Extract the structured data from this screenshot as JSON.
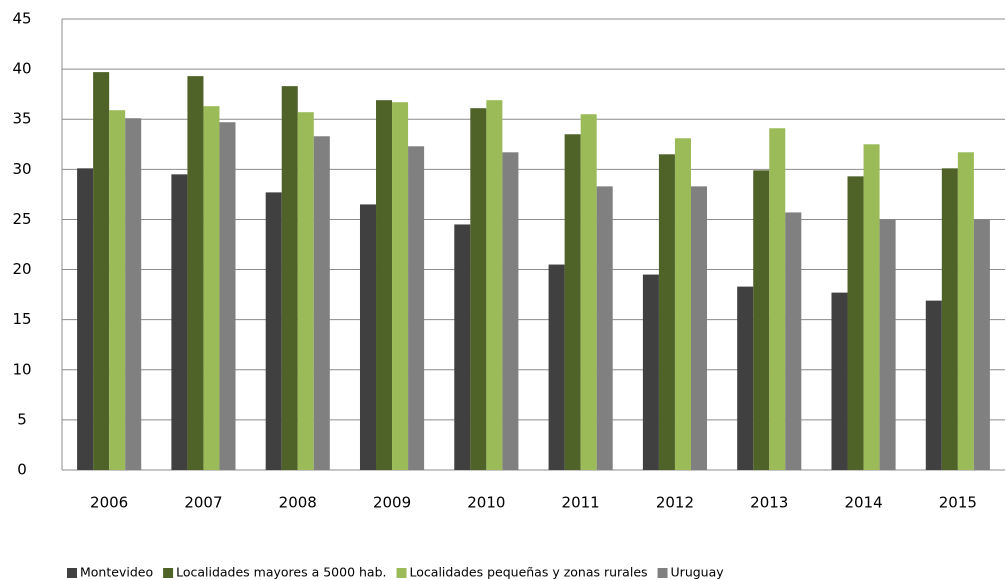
{
  "chart_data": {
    "type": "bar",
    "categories": [
      "2006",
      "2007",
      "2008",
      "2009",
      "2010",
      "2011",
      "2012",
      "2013",
      "2014",
      "2015"
    ],
    "series": [
      {
        "name": "Montevideo",
        "color": "#404040",
        "values": [
          30.1,
          29.5,
          27.7,
          26.5,
          24.5,
          20.5,
          19.5,
          18.3,
          17.7,
          16.9
        ]
      },
      {
        "name": "Localidades mayores a 5000 hab.",
        "color": "#4f6228",
        "values": [
          39.7,
          39.3,
          38.3,
          36.9,
          36.1,
          33.5,
          31.5,
          29.9,
          29.3,
          30.1
        ]
      },
      {
        "name": "Localidades pequeñas y zonas rurales",
        "color": "#9bbb59",
        "values": [
          35.9,
          36.3,
          35.7,
          36.7,
          36.9,
          35.5,
          33.1,
          34.1,
          32.5,
          31.7
        ]
      },
      {
        "name": "Uruguay",
        "color": "#808080",
        "values": [
          35.1,
          34.7,
          33.3,
          32.3,
          31.7,
          28.3,
          28.3,
          25.7,
          25.0,
          25.0
        ]
      }
    ],
    "ylim": [
      0,
      45
    ],
    "yticks": [
      0,
      5,
      10,
      15,
      20,
      25,
      30,
      35,
      40,
      45
    ],
    "grid": true,
    "legend": "bottom"
  }
}
